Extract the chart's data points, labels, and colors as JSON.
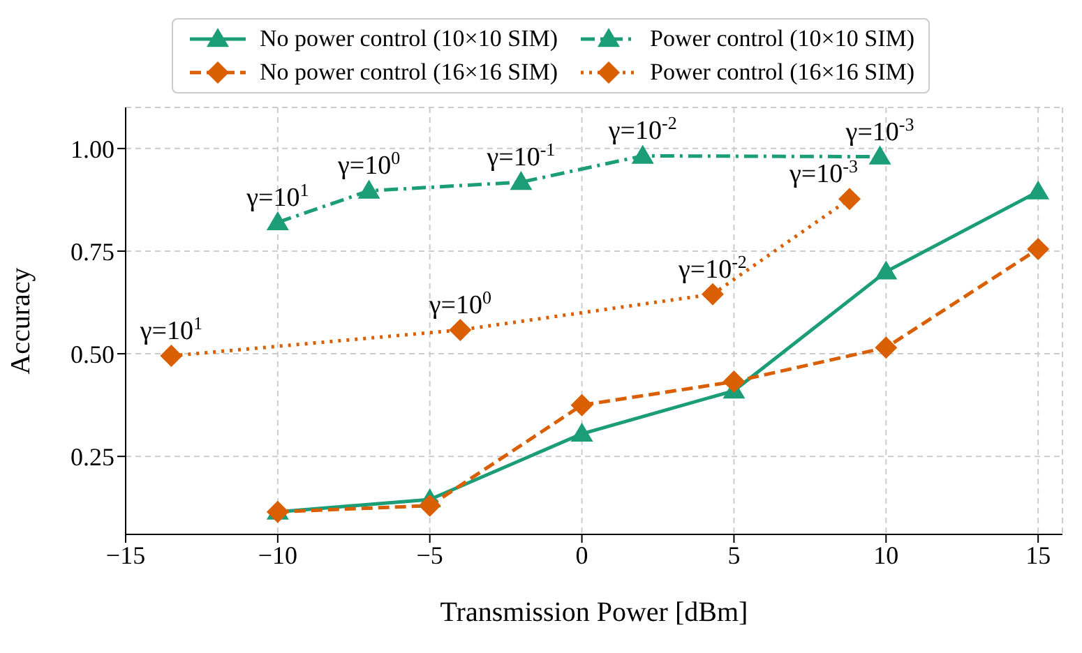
{
  "chart_data": {
    "type": "line",
    "xlabel": "Transmission Power [dBm]",
    "ylabel": "Accuracy",
    "xlim": [
      -15,
      15.8
    ],
    "xticks": [
      -15,
      -10,
      -5,
      0,
      5,
      10,
      15
    ],
    "ylim": [
      0.06,
      1.1
    ],
    "yticks": [
      {
        "value": 0.25,
        "label": "0.25"
      },
      {
        "value": 0.5,
        "label": "0.50"
      },
      {
        "value": 0.75,
        "label": "0.75"
      },
      {
        "value": 1,
        "label": "1.00"
      }
    ],
    "grid": true,
    "legend": "top",
    "series": [
      {
        "name": "No power control (10×10 SIM)",
        "color": "#1b9e77",
        "marker": "triangle",
        "line_style": "solid",
        "x": [
          -10,
          -5,
          0,
          5,
          10,
          15
        ],
        "values": [
          0.115,
          0.145,
          0.305,
          0.41,
          0.7,
          0.895
        ]
      },
      {
        "name": "Power control (10×10 SIM)",
        "color": "#1b9e77",
        "marker": "triangle",
        "line_style": "dashdot",
        "x": [
          -10,
          -7,
          -2,
          2,
          9.8
        ],
        "values": [
          0.82,
          0.897,
          0.918,
          0.982,
          0.98
        ]
      },
      {
        "name": "No power control (16×16 SIM)",
        "color": "#d95f02",
        "marker": "diamond",
        "line_style": "dashed",
        "x": [
          -10,
          -5,
          0,
          5,
          10,
          15
        ],
        "values": [
          0.115,
          0.13,
          0.375,
          0.432,
          0.515,
          0.755
        ]
      },
      {
        "name": "Power control (16×16 SIM)",
        "color": "#d95f02",
        "marker": "diamond",
        "line_style": "dotted",
        "x": [
          -13.5,
          -4,
          4.3,
          8.8
        ],
        "values": [
          0.495,
          0.558,
          0.645,
          0.877
        ]
      }
    ],
    "annotations": [
      {
        "text": "γ=10$^{1}$",
        "x": -10,
        "y": 0.82
      },
      {
        "text": "γ=10$^{0}$",
        "x": -7,
        "y": 0.897
      },
      {
        "text": "γ=10$^{-1}$",
        "x": -2,
        "y": 0.918
      },
      {
        "text": "γ=10$^{-2}$",
        "x": 2,
        "y": 0.982
      },
      {
        "text": "γ=10$^{-3}$",
        "x": 9.8,
        "y": 0.98
      },
      {
        "text": "γ=10$^{1}$",
        "x": -13.5,
        "y": 0.495
      },
      {
        "text": "γ=10$^{0}$",
        "x": -4,
        "y": 0.558
      },
      {
        "text": "γ=10$^{-2}$",
        "x": 4.3,
        "y": 0.645
      },
      {
        "text": "γ=10$^{-3}$",
        "x": 8.8,
        "y": 0.877
      }
    ]
  }
}
